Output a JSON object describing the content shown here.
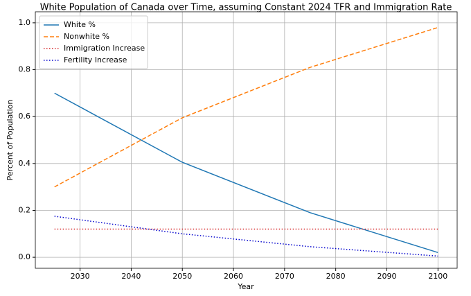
{
  "chart_data": {
    "type": "line",
    "title": "White Population of Canada over Time, assuming Constant 2024 TFR and Immigration Rate",
    "x_label": "Year",
    "y_label": "Percent of Population",
    "x": [
      2025,
      2050,
      2075,
      2100
    ],
    "series": [
      {
        "name": "White %",
        "color": "#1f77b4",
        "linestyle": "solid",
        "values": [
          0.7,
          0.405,
          0.19,
          0.02
        ]
      },
      {
        "name": "Nonwhite %",
        "color": "#ff7f0e",
        "linestyle": "dashed",
        "values": [
          0.3,
          0.595,
          0.81,
          0.98
        ]
      },
      {
        "name": "Immigration Increase",
        "color": "#d62728",
        "linestyle": "dotted",
        "values": [
          0.12,
          0.12,
          0.12,
          0.12
        ]
      },
      {
        "name": "Fertility Increase",
        "color": "#0000cc",
        "linestyle": "dotted",
        "values": [
          0.175,
          0.1,
          0.045,
          0.005
        ]
      }
    ],
    "xlim": [
      2021.25,
      2103.75
    ],
    "xticks": [
      2030,
      2040,
      2050,
      2060,
      2070,
      2080,
      2090,
      2100
    ],
    "ylim": [
      -0.047,
      1.047
    ],
    "yticks": [
      {
        "value": 0,
        "label": "0.0"
      },
      0.2,
      0.4,
      0.6,
      0.8,
      {
        "value": 1,
        "label": "1.0"
      }
    ],
    "grid": true,
    "legend": "upper-left"
  }
}
